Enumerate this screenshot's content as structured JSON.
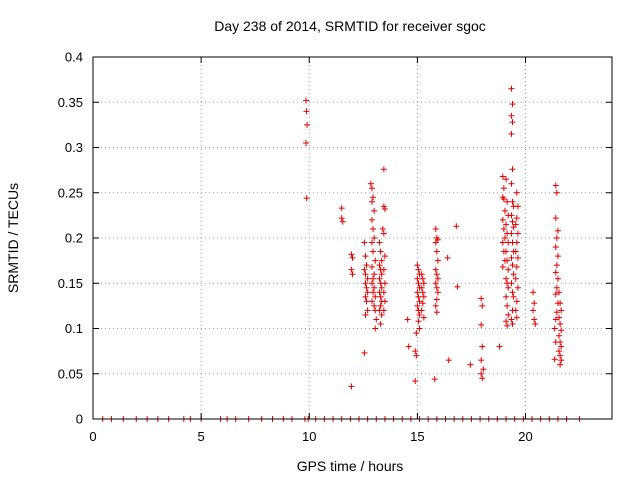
{
  "chart_data": {
    "type": "scatter",
    "title": "Day 238 of 2014, SRMTID for receiver sgoc",
    "xlabel": "GPS time / hours",
    "ylabel": "SRMTID / TECUs",
    "xlim": [
      0,
      24
    ],
    "ylim": [
      0,
      0.4
    ],
    "xticks": [
      0,
      5,
      10,
      15,
      20
    ],
    "xtick_labels": [
      "0",
      "5",
      "10",
      "15",
      "20"
    ],
    "yticks": [
      0,
      0.05,
      0.1,
      0.15,
      0.2,
      0.25,
      0.3,
      0.35,
      0.4
    ],
    "ytick_labels": [
      "0",
      "0.05",
      "0.1",
      "0.15",
      "0.2",
      "0.25",
      "0.3",
      "0.35",
      "0.4"
    ],
    "grid": true,
    "marker": "plus",
    "color": "#e00000",
    "series": [
      {
        "name": "SRMTID",
        "points": [
          [
            9.85,
            0.352
          ],
          [
            9.87,
            0.34
          ],
          [
            9.9,
            0.325
          ],
          [
            9.85,
            0.305
          ],
          [
            9.88,
            0.244
          ],
          [
            11.5,
            0.233
          ],
          [
            11.5,
            0.222
          ],
          [
            11.55,
            0.218
          ],
          [
            11.95,
            0.182
          ],
          [
            12.0,
            0.178
          ],
          [
            11.95,
            0.165
          ],
          [
            12.0,
            0.16
          ],
          [
            11.95,
            0.036
          ],
          [
            12.55,
            0.195
          ],
          [
            12.6,
            0.18
          ],
          [
            12.65,
            0.17
          ],
          [
            12.55,
            0.165
          ],
          [
            12.6,
            0.16
          ],
          [
            12.7,
            0.155
          ],
          [
            12.6,
            0.15
          ],
          [
            12.65,
            0.145
          ],
          [
            12.7,
            0.14
          ],
          [
            12.6,
            0.135
          ],
          [
            12.65,
            0.13
          ],
          [
            12.7,
            0.12
          ],
          [
            12.6,
            0.115
          ],
          [
            12.55,
            0.073
          ],
          [
            12.85,
            0.26
          ],
          [
            12.9,
            0.255
          ],
          [
            12.95,
            0.245
          ],
          [
            12.9,
            0.24
          ],
          [
            13.0,
            0.23
          ],
          [
            12.9,
            0.22
          ],
          [
            12.95,
            0.21
          ],
          [
            13.0,
            0.2
          ],
          [
            12.9,
            0.195
          ],
          [
            12.95,
            0.185
          ],
          [
            13.05,
            0.175
          ],
          [
            12.9,
            0.168
          ],
          [
            13.0,
            0.16
          ],
          [
            12.95,
            0.155
          ],
          [
            12.9,
            0.15
          ],
          [
            13.0,
            0.145
          ],
          [
            12.95,
            0.14
          ],
          [
            13.05,
            0.135
          ],
          [
            12.9,
            0.13
          ],
          [
            13.0,
            0.125
          ],
          [
            13.05,
            0.12
          ],
          [
            13.1,
            0.11
          ],
          [
            13.05,
            0.1
          ],
          [
            13.25,
            0.195
          ],
          [
            13.3,
            0.185
          ],
          [
            13.35,
            0.175
          ],
          [
            13.25,
            0.17
          ],
          [
            13.3,
            0.165
          ],
          [
            13.35,
            0.16
          ],
          [
            13.25,
            0.155
          ],
          [
            13.3,
            0.15
          ],
          [
            13.35,
            0.145
          ],
          [
            13.25,
            0.14
          ],
          [
            13.3,
            0.135
          ],
          [
            13.35,
            0.13
          ],
          [
            13.3,
            0.125
          ],
          [
            13.25,
            0.12
          ],
          [
            13.35,
            0.115
          ],
          [
            13.3,
            0.105
          ],
          [
            13.45,
            0.276
          ],
          [
            13.45,
            0.235
          ],
          [
            13.5,
            0.232
          ],
          [
            13.4,
            0.21
          ],
          [
            13.45,
            0.205
          ],
          [
            13.5,
            0.18
          ],
          [
            13.45,
            0.165
          ],
          [
            13.5,
            0.15
          ],
          [
            13.45,
            0.14
          ],
          [
            13.5,
            0.13
          ],
          [
            13.45,
            0.12
          ],
          [
            14.55,
            0.11
          ],
          [
            14.6,
            0.08
          ],
          [
            14.95,
            0.095
          ],
          [
            14.9,
            0.075
          ],
          [
            14.95,
            0.07
          ],
          [
            14.9,
            0.042
          ],
          [
            15.0,
            0.17
          ],
          [
            15.05,
            0.165
          ],
          [
            15.1,
            0.16
          ],
          [
            15.0,
            0.155
          ],
          [
            15.05,
            0.15
          ],
          [
            15.1,
            0.145
          ],
          [
            15.0,
            0.14
          ],
          [
            15.05,
            0.135
          ],
          [
            15.1,
            0.13
          ],
          [
            15.0,
            0.125
          ],
          [
            15.05,
            0.12
          ],
          [
            15.1,
            0.115
          ],
          [
            15.05,
            0.108
          ],
          [
            15.1,
            0.1
          ],
          [
            15.2,
            0.16
          ],
          [
            15.25,
            0.155
          ],
          [
            15.3,
            0.15
          ],
          [
            15.2,
            0.145
          ],
          [
            15.25,
            0.14
          ],
          [
            15.3,
            0.135
          ],
          [
            15.25,
            0.128
          ],
          [
            15.2,
            0.12
          ],
          [
            15.3,
            0.112
          ],
          [
            15.85,
            0.21
          ],
          [
            15.9,
            0.2
          ],
          [
            15.95,
            0.198
          ],
          [
            15.85,
            0.195
          ],
          [
            15.9,
            0.185
          ],
          [
            15.95,
            0.175
          ],
          [
            15.85,
            0.165
          ],
          [
            15.9,
            0.16
          ],
          [
            15.95,
            0.155
          ],
          [
            15.85,
            0.15
          ],
          [
            15.9,
            0.145
          ],
          [
            15.95,
            0.14
          ],
          [
            15.9,
            0.132
          ],
          [
            15.85,
            0.125
          ],
          [
            15.9,
            0.118
          ],
          [
            15.8,
            0.044
          ],
          [
            16.4,
            0.178
          ],
          [
            16.45,
            0.065
          ],
          [
            16.8,
            0.213
          ],
          [
            16.85,
            0.146
          ],
          [
            17.45,
            0.06
          ],
          [
            17.95,
            0.133
          ],
          [
            18.0,
            0.125
          ],
          [
            17.95,
            0.104
          ],
          [
            18.0,
            0.08
          ],
          [
            17.95,
            0.065
          ],
          [
            18.05,
            0.055
          ],
          [
            17.95,
            0.05
          ],
          [
            18.0,
            0.045
          ],
          [
            18.8,
            0.08
          ],
          [
            18.95,
            0.268
          ],
          [
            19.0,
            0.255
          ],
          [
            18.95,
            0.245
          ],
          [
            19.0,
            0.243
          ],
          [
            19.05,
            0.23
          ],
          [
            18.95,
            0.22
          ],
          [
            19.0,
            0.21
          ],
          [
            19.05,
            0.2
          ],
          [
            18.95,
            0.195
          ],
          [
            19.0,
            0.185
          ],
          [
            19.05,
            0.175
          ],
          [
            18.95,
            0.168
          ],
          [
            19.1,
            0.265
          ],
          [
            19.15,
            0.24
          ],
          [
            19.2,
            0.225
          ],
          [
            19.1,
            0.215
          ],
          [
            19.15,
            0.205
          ],
          [
            19.2,
            0.195
          ],
          [
            19.1,
            0.185
          ],
          [
            19.15,
            0.175
          ],
          [
            19.2,
            0.165
          ],
          [
            19.1,
            0.155
          ],
          [
            19.15,
            0.15
          ],
          [
            19.2,
            0.145
          ],
          [
            19.1,
            0.135
          ],
          [
            19.15,
            0.125
          ],
          [
            19.2,
            0.115
          ],
          [
            19.1,
            0.108
          ],
          [
            19.15,
            0.103
          ],
          [
            19.35,
            0.365
          ],
          [
            19.4,
            0.348
          ],
          [
            19.35,
            0.335
          ],
          [
            19.4,
            0.328
          ],
          [
            19.35,
            0.315
          ],
          [
            19.4,
            0.276
          ],
          [
            19.35,
            0.26
          ],
          [
            19.4,
            0.24
          ],
          [
            19.45,
            0.235
          ],
          [
            19.35,
            0.225
          ],
          [
            19.4,
            0.218
          ],
          [
            19.45,
            0.212
          ],
          [
            19.35,
            0.205
          ],
          [
            19.4,
            0.195
          ],
          [
            19.45,
            0.185
          ],
          [
            19.35,
            0.178
          ],
          [
            19.4,
            0.17
          ],
          [
            19.45,
            0.16
          ],
          [
            19.35,
            0.15
          ],
          [
            19.4,
            0.14
          ],
          [
            19.45,
            0.135
          ],
          [
            19.4,
            0.12
          ],
          [
            19.35,
            0.11
          ],
          [
            19.4,
            0.105
          ],
          [
            19.6,
            0.25
          ],
          [
            19.65,
            0.235
          ],
          [
            19.6,
            0.222
          ],
          [
            19.55,
            0.215
          ],
          [
            19.65,
            0.205
          ],
          [
            19.6,
            0.195
          ],
          [
            19.55,
            0.185
          ],
          [
            19.65,
            0.178
          ],
          [
            19.6,
            0.168
          ],
          [
            19.55,
            0.155
          ],
          [
            19.65,
            0.145
          ],
          [
            19.6,
            0.13
          ],
          [
            19.55,
            0.12
          ],
          [
            19.6,
            0.112
          ],
          [
            20.35,
            0.14
          ],
          [
            20.4,
            0.128
          ],
          [
            20.35,
            0.12
          ],
          [
            20.4,
            0.11
          ],
          [
            20.45,
            0.105
          ],
          [
            21.4,
            0.258
          ],
          [
            21.45,
            0.25
          ],
          [
            21.4,
            0.222
          ],
          [
            21.5,
            0.208
          ],
          [
            21.45,
            0.2
          ],
          [
            21.4,
            0.19
          ],
          [
            21.5,
            0.18
          ],
          [
            21.45,
            0.17
          ],
          [
            21.4,
            0.162
          ],
          [
            21.5,
            0.155
          ],
          [
            21.45,
            0.145
          ],
          [
            21.4,
            0.138
          ],
          [
            21.5,
            0.128
          ],
          [
            21.45,
            0.118
          ],
          [
            21.4,
            0.11
          ],
          [
            21.35,
            0.1
          ],
          [
            21.4,
            0.085
          ],
          [
            21.35,
            0.066
          ],
          [
            21.55,
            0.14
          ],
          [
            21.6,
            0.128
          ],
          [
            21.65,
            0.12
          ],
          [
            21.55,
            0.112
          ],
          [
            21.6,
            0.105
          ],
          [
            21.65,
            0.098
          ],
          [
            21.55,
            0.092
          ],
          [
            21.6,
            0.085
          ],
          [
            21.65,
            0.08
          ],
          [
            21.55,
            0.075
          ],
          [
            21.6,
            0.07
          ],
          [
            21.65,
            0.065
          ],
          [
            21.6,
            0.06
          ]
        ],
        "zero_points_x": [
          0.45,
          0.85,
          1.4,
          2.0,
          2.5,
          3.0,
          3.5,
          4.2,
          4.5,
          5.0,
          5.9,
          6.2,
          6.6,
          7.2,
          7.8,
          8.3,
          8.8,
          9.2,
          9.8,
          9.95,
          10.3,
          10.7,
          11.1,
          11.5,
          11.9,
          12.3,
          12.7,
          13.1,
          13.5,
          13.9,
          14.3,
          14.7,
          15.1,
          15.5,
          15.9,
          16.3,
          16.7,
          17.1,
          17.5,
          17.9,
          18.3,
          18.7,
          19.1,
          19.5,
          19.9,
          20.3,
          20.7,
          21.1,
          21.5,
          21.9,
          22.5
        ]
      }
    ]
  }
}
